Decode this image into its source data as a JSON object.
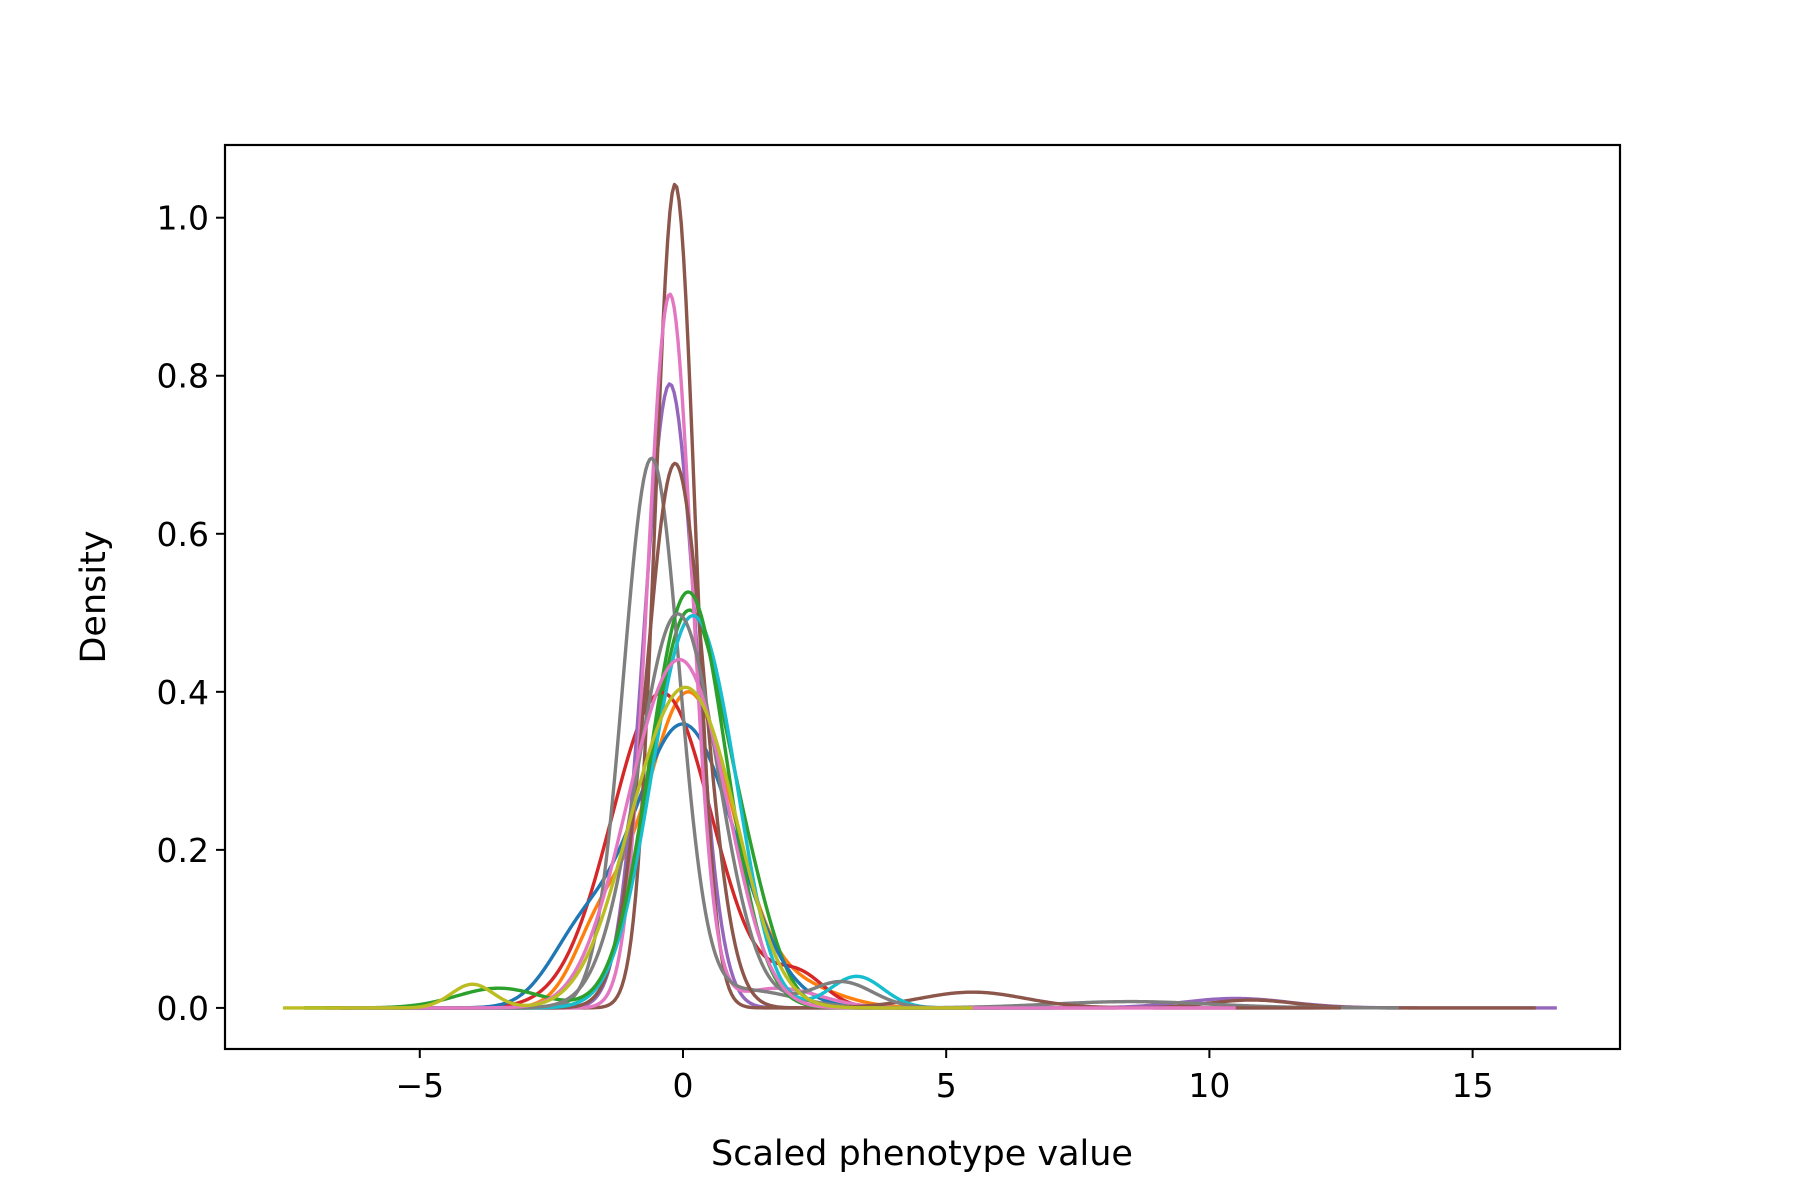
{
  "chart_data": {
    "type": "line",
    "title": "",
    "xlabel": "Scaled phenotype value",
    "ylabel": "Density",
    "xlim": [
      -8.7,
      17.8
    ],
    "ylim": [
      -0.052,
      1.092
    ],
    "x_ticks": [
      {
        "value": -5,
        "label": "−5"
      },
      {
        "value": 0,
        "label": "0"
      },
      {
        "value": 5,
        "label": "5"
      },
      {
        "value": 10,
        "label": "10"
      },
      {
        "value": 15,
        "label": "15"
      }
    ],
    "y_ticks": [
      {
        "value": 0.0,
        "label": "0.0"
      },
      {
        "value": 0.2,
        "label": "0.2"
      },
      {
        "value": 0.4,
        "label": "0.4"
      },
      {
        "value": 0.6,
        "label": "0.6"
      },
      {
        "value": 0.8,
        "label": "0.8"
      },
      {
        "value": 1.0,
        "label": "1.0"
      }
    ],
    "grid": false,
    "legend": "none",
    "series": [
      {
        "color": "#ff7f0e",
        "x_range": [
          -6.5,
          5.5
        ],
        "components": [
          {
            "w": 0.85,
            "mu": 0.1,
            "s": 0.85
          },
          {
            "w": 0.1,
            "mu": -1.6,
            "s": 0.5
          },
          {
            "w": 0.05,
            "mu": 2.2,
            "s": 0.8
          }
        ]
      },
      {
        "color": "#2ca02c",
        "x_range": [
          -7.2,
          5.0
        ],
        "components": [
          {
            "w": 0.9,
            "mu": 0.1,
            "s": 0.72
          },
          {
            "w": 0.1,
            "mu": 1.3,
            "s": 0.5
          }
        ]
      },
      {
        "color": "#d62728",
        "x_range": [
          -6.8,
          6.0
        ],
        "components": [
          {
            "w": 0.95,
            "mu": -0.4,
            "s": 0.95
          },
          {
            "w": 0.05,
            "mu": 2.2,
            "s": 0.5
          }
        ]
      },
      {
        "color": "#1f77b4",
        "x_range": [
          -6.5,
          5.0
        ],
        "components": [
          {
            "w": 0.9,
            "mu": 0.0,
            "s": 1.0
          },
          {
            "w": 0.1,
            "mu": -2.0,
            "s": 0.6
          }
        ]
      },
      {
        "color": "#9467bd",
        "x_range": [
          -6.0,
          16.6
        ],
        "components": [
          {
            "w": 0.97,
            "mu": -0.25,
            "s": 0.49
          },
          {
            "w": 0.03,
            "mu": 10.5,
            "s": 1.0
          }
        ]
      },
      {
        "color": "#8c564b",
        "x_range": [
          -5.5,
          16.2
        ],
        "components": [
          {
            "w": 0.98,
            "mu": -0.15,
            "s": 0.375
          },
          {
            "w": 0.02,
            "mu": 10.8,
            "s": 0.8
          }
        ]
      },
      {
        "color": "#e377c2",
        "x_range": [
          -6.0,
          12.0
        ],
        "components": [
          {
            "w": 0.95,
            "mu": -0.25,
            "s": 0.42
          },
          {
            "w": 0.05,
            "mu": 1.8,
            "s": 0.8
          }
        ]
      },
      {
        "color": "#7f7f7f",
        "x_range": [
          -6.0,
          13.6
        ],
        "components": [
          {
            "w": 0.92,
            "mu": -0.6,
            "s": 0.53
          },
          {
            "w": 0.05,
            "mu": 1.2,
            "s": 0.9
          },
          {
            "w": 0.03,
            "mu": 8.5,
            "s": 1.5
          }
        ]
      },
      {
        "color": "#8c564b",
        "x_range": [
          -6.0,
          12.5
        ],
        "components": [
          {
            "w": 0.95,
            "mu": -0.15,
            "s": 0.55
          },
          {
            "w": 0.05,
            "mu": 5.5,
            "s": 1.0
          }
        ]
      },
      {
        "color": "#17becf",
        "x_range": [
          -6.0,
          7.0
        ],
        "components": [
          {
            "w": 0.85,
            "mu": 0.1,
            "s": 0.72
          },
          {
            "w": 0.1,
            "mu": 0.9,
            "s": 0.5
          },
          {
            "w": 0.05,
            "mu": 3.3,
            "s": 0.5
          }
        ]
      },
      {
        "color": "#2ca02c",
        "x_range": [
          -7.2,
          6.0
        ],
        "components": [
          {
            "w": 0.95,
            "mu": 0.1,
            "s": 0.72
          },
          {
            "w": 0.05,
            "mu": -3.5,
            "s": 0.8
          }
        ]
      },
      {
        "color": "#7f7f7f",
        "x_range": [
          -6.5,
          7.0
        ],
        "components": [
          {
            "w": 0.95,
            "mu": -0.1,
            "s": 0.76
          },
          {
            "w": 0.05,
            "mu": 3.0,
            "s": 0.6
          }
        ]
      },
      {
        "color": "#e377c2",
        "x_range": [
          -6.5,
          10.5
        ],
        "components": [
          {
            "w": 0.6,
            "mu": -0.5,
            "s": 0.8
          },
          {
            "w": 0.4,
            "mu": 0.4,
            "s": 0.7
          }
        ]
      },
      {
        "color": "#bcbd22",
        "x_range": [
          -7.6,
          5.5
        ],
        "components": [
          {
            "w": 0.5,
            "mu": -0.5,
            "s": 0.8
          },
          {
            "w": 0.47,
            "mu": 0.5,
            "s": 0.75
          },
          {
            "w": 0.03,
            "mu": -4.0,
            "s": 0.4
          }
        ]
      }
    ]
  }
}
